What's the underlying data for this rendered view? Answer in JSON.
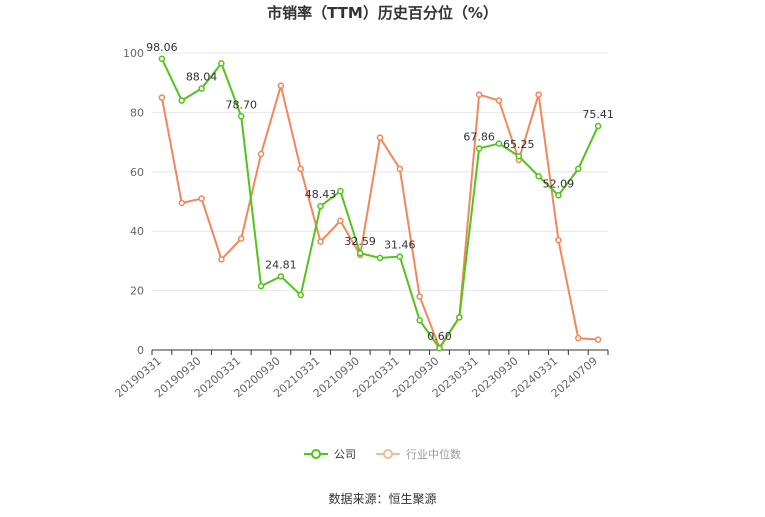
{
  "title": "市销率（TTM）历史百分位（%）",
  "source": "数据来源：恒生聚源",
  "colors": {
    "company": "#52c41a",
    "industry": "#f4875a",
    "grid": "#e6e6e6",
    "axis": "#333333",
    "tick": "#666666"
  },
  "chart_data": {
    "type": "line",
    "title": "市销率（TTM）历史百分位（%）",
    "ylim": [
      0,
      100
    ],
    "yticks": [
      0,
      20,
      40,
      60,
      80,
      100
    ],
    "x_tick_labels": [
      "20190331",
      "20190930",
      "20200331",
      "20200930",
      "20210331",
      "20210930",
      "20220331",
      "20220930",
      "20230331",
      "20230930",
      "20240331",
      "20240709"
    ],
    "x_tick_indices": [
      0,
      2,
      4,
      6,
      8,
      10,
      12,
      14,
      16,
      18,
      20,
      22
    ],
    "series": [
      {
        "name": "公司",
        "values": [
          98.06,
          84.0,
          88.04,
          96.5,
          78.7,
          21.5,
          24.81,
          18.5,
          48.43,
          53.5,
          32.59,
          31.0,
          31.46,
          10.0,
          0.6,
          11.0,
          67.86,
          69.5,
          65.25,
          58.5,
          52.09,
          61.0,
          75.41
        ],
        "point_labels": {
          "0": "98.06",
          "2": "88.04",
          "4": "78.70",
          "6": "24.81",
          "8": "48.43",
          "10": "32.59",
          "12": "31.46",
          "14": "0.60",
          "16": "67.86",
          "18": "65.25",
          "20": "52.09",
          "22": "75.41"
        }
      },
      {
        "name": "行业中位数",
        "values": [
          85.0,
          49.5,
          51.0,
          30.5,
          37.5,
          66.0,
          89.0,
          61.0,
          36.5,
          43.5,
          32.0,
          71.5,
          61.0,
          18.0,
          0.8,
          11.0,
          86.0,
          84.0,
          64.0,
          86.0,
          37.0,
          4.0,
          3.5
        ]
      }
    ]
  }
}
